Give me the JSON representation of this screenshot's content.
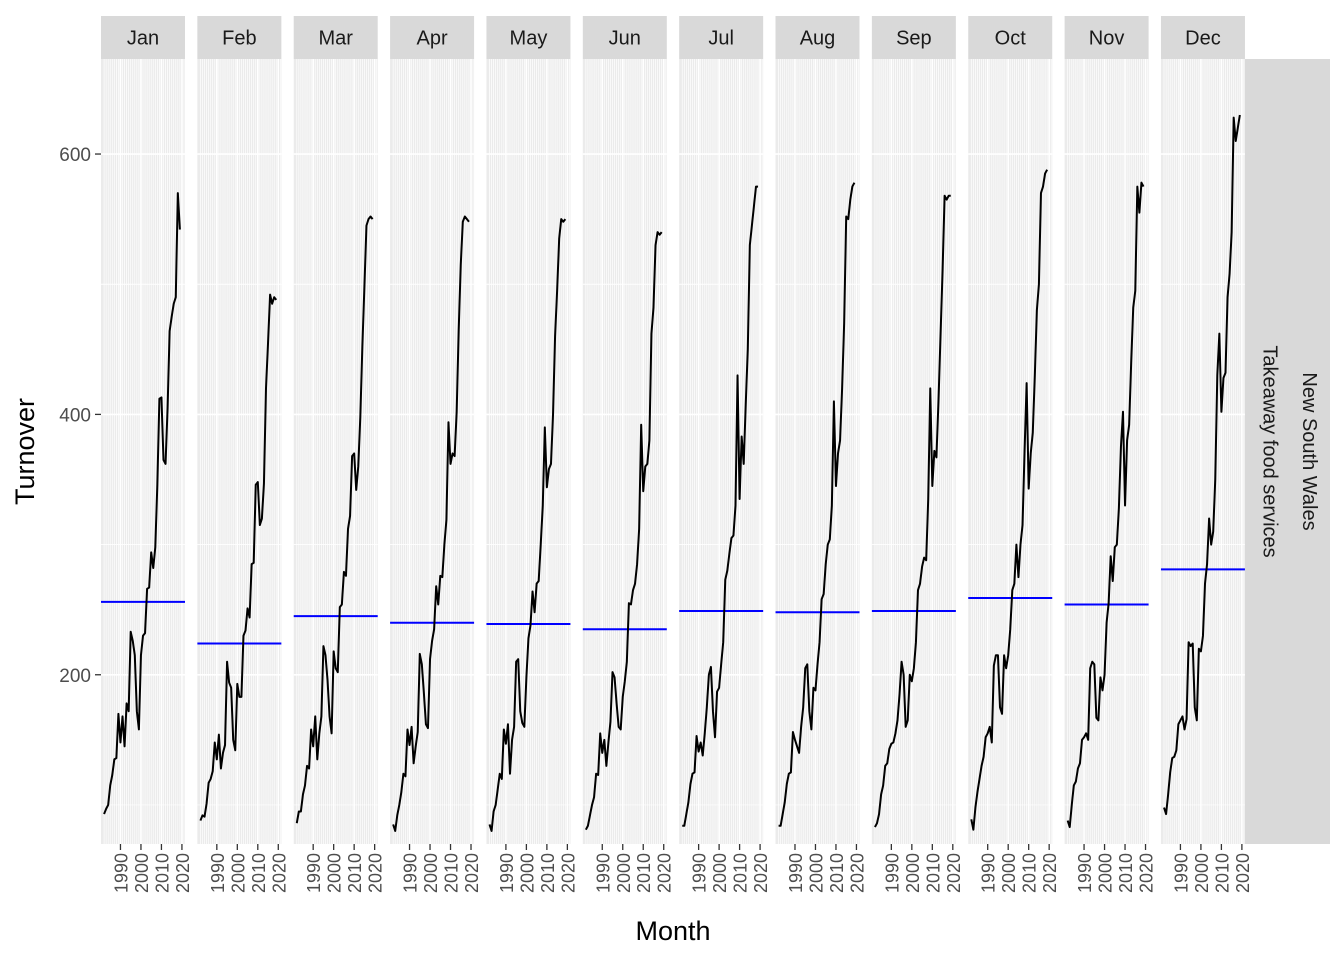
{
  "chart_data": {
    "type": "line",
    "subtype": "seasonal-subseries",
    "xlabel": "Month",
    "ylabel": "Turnover",
    "ylim": [
      70,
      673
    ],
    "y_ticks": [
      200,
      400,
      600
    ],
    "x_ticks": [
      1990,
      2000,
      2010,
      2020
    ],
    "x_tick_labels": [
      "1990",
      "2000",
      "2010",
      "2020"
    ],
    "xlim": [
      1980.5,
      2021.5
    ],
    "grid": true,
    "strip_right": [
      "New South Wales",
      "Takeaway food services"
    ],
    "colors": {
      "line": "#000000",
      "mean_line": "#0000ff",
      "panel": "#ebebeb",
      "strip": "#d9d9d9",
      "grid": "#ffffff"
    },
    "years": [
      1982,
      1983,
      1984,
      1985,
      1986,
      1987,
      1988,
      1989,
      1990,
      1991,
      1992,
      1993,
      1994,
      1995,
      1996,
      1997,
      1998,
      1999,
      2000,
      2001,
      2002,
      2003,
      2004,
      2005,
      2006,
      2007,
      2008,
      2009,
      2010,
      2011,
      2012,
      2013,
      2014,
      2015,
      2016,
      2017,
      2018,
      2019
    ],
    "panels": [
      {
        "month": "Jan",
        "mean": 256,
        "values": [
          93,
          97,
          100,
          115,
          123,
          135,
          136,
          170,
          148,
          168,
          145,
          178,
          172,
          233,
          226,
          215,
          172,
          158,
          215,
          230,
          232,
          266,
          267,
          294,
          282,
          298,
          346,
          412,
          413,
          365,
          362,
          405,
          464,
          475,
          485,
          490,
          570,
          542
        ]
      },
      {
        "month": "Feb",
        "mean": 224,
        "values": [
          88,
          92,
          91,
          101,
          117,
          120,
          126,
          148,
          135,
          154,
          128,
          140,
          146,
          210,
          194,
          190,
          150,
          142,
          193,
          183,
          183,
          230,
          234,
          251,
          244,
          285,
          286,
          346,
          348,
          315,
          320,
          347,
          420,
          455,
          492,
          485,
          490,
          488
        ]
      },
      {
        "month": "Mar",
        "mean": 245,
        "values": [
          86,
          95,
          95,
          108,
          115,
          130,
          128,
          158,
          145,
          168,
          135,
          155,
          168,
          222,
          215,
          196,
          168,
          155,
          218,
          205,
          202,
          252,
          254,
          279,
          276,
          312,
          322,
          368,
          370,
          342,
          360,
          398,
          452,
          498,
          545,
          550,
          552,
          550
        ]
      },
      {
        "month": "Apr",
        "mean": 240,
        "values": [
          85,
          80,
          92,
          100,
          110,
          124,
          122,
          158,
          146,
          160,
          132,
          145,
          156,
          216,
          208,
          186,
          162,
          159,
          212,
          226,
          235,
          268,
          254,
          276,
          275,
          300,
          319,
          394,
          362,
          370,
          368,
          402,
          465,
          515,
          548,
          552,
          550,
          548
        ]
      },
      {
        "month": "May",
        "mean": 239,
        "values": [
          85,
          80,
          95,
          100,
          112,
          124,
          120,
          158,
          147,
          162,
          124,
          150,
          160,
          210,
          212,
          172,
          163,
          160,
          198,
          228,
          238,
          264,
          248,
          270,
          272,
          300,
          330,
          390,
          344,
          358,
          362,
          400,
          460,
          495,
          535,
          550,
          548,
          550
        ]
      },
      {
        "month": "Jun",
        "mean": 235,
        "values": [
          81,
          84,
          92,
          100,
          106,
          124,
          123,
          155,
          140,
          150,
          130,
          148,
          164,
          202,
          198,
          178,
          160,
          158,
          183,
          195,
          210,
          255,
          254,
          265,
          270,
          285,
          312,
          392,
          341,
          360,
          362,
          380,
          462,
          482,
          530,
          540,
          538,
          540
        ]
      },
      {
        "month": "Jul",
        "mean": 249,
        "values": [
          84,
          84,
          93,
          102,
          116,
          124,
          125,
          153,
          141,
          148,
          138,
          155,
          175,
          200,
          206,
          172,
          152,
          187,
          190,
          208,
          225,
          273,
          280,
          293,
          305,
          307,
          330,
          430,
          335,
          383,
          362,
          408,
          450,
          530,
          545,
          560,
          575,
          575
        ]
      },
      {
        "month": "Aug",
        "mean": 248,
        "values": [
          84,
          84,
          93,
          102,
          116,
          124,
          125,
          156,
          150,
          145,
          140,
          160,
          175,
          205,
          208,
          172,
          158,
          190,
          188,
          208,
          225,
          258,
          262,
          285,
          300,
          304,
          330,
          410,
          345,
          370,
          380,
          420,
          470,
          552,
          550,
          565,
          575,
          578
        ]
      },
      {
        "month": "Sep",
        "mean": 249,
        "values": [
          83,
          86,
          93,
          108,
          115,
          130,
          132,
          143,
          147,
          148,
          155,
          165,
          185,
          210,
          200,
          160,
          165,
          200,
          195,
          205,
          225,
          265,
          270,
          283,
          290,
          288,
          335,
          420,
          345,
          372,
          367,
          410,
          460,
          510,
          568,
          565,
          568,
          568
        ]
      },
      {
        "month": "Oct",
        "mean": 259,
        "values": [
          89,
          81,
          98,
          110,
          120,
          130,
          137,
          152,
          155,
          160,
          148,
          207,
          215,
          215,
          175,
          170,
          215,
          205,
          215,
          235,
          265,
          270,
          300,
          275,
          300,
          315,
          372,
          424,
          343,
          370,
          386,
          430,
          480,
          500,
          570,
          575,
          585,
          588
        ]
      },
      {
        "month": "Nov",
        "mean": 254,
        "values": [
          88,
          83,
          100,
          115,
          118,
          128,
          132,
          150,
          152,
          155,
          150,
          205,
          210,
          208,
          167,
          165,
          198,
          188,
          200,
          240,
          255,
          291,
          272,
          298,
          300,
          328,
          375,
          402,
          330,
          380,
          392,
          440,
          482,
          495,
          575,
          555,
          578,
          575
        ]
      },
      {
        "month": "Dec",
        "mean": 281,
        "values": [
          98,
          93,
          108,
          125,
          136,
          137,
          142,
          162,
          165,
          168,
          158,
          166,
          225,
          222,
          224,
          175,
          165,
          220,
          218,
          230,
          270,
          285,
          320,
          300,
          310,
          350,
          430,
          462,
          402,
          428,
          432,
          490,
          508,
          540,
          628,
          610,
          620,
          630
        ]
      }
    ]
  }
}
